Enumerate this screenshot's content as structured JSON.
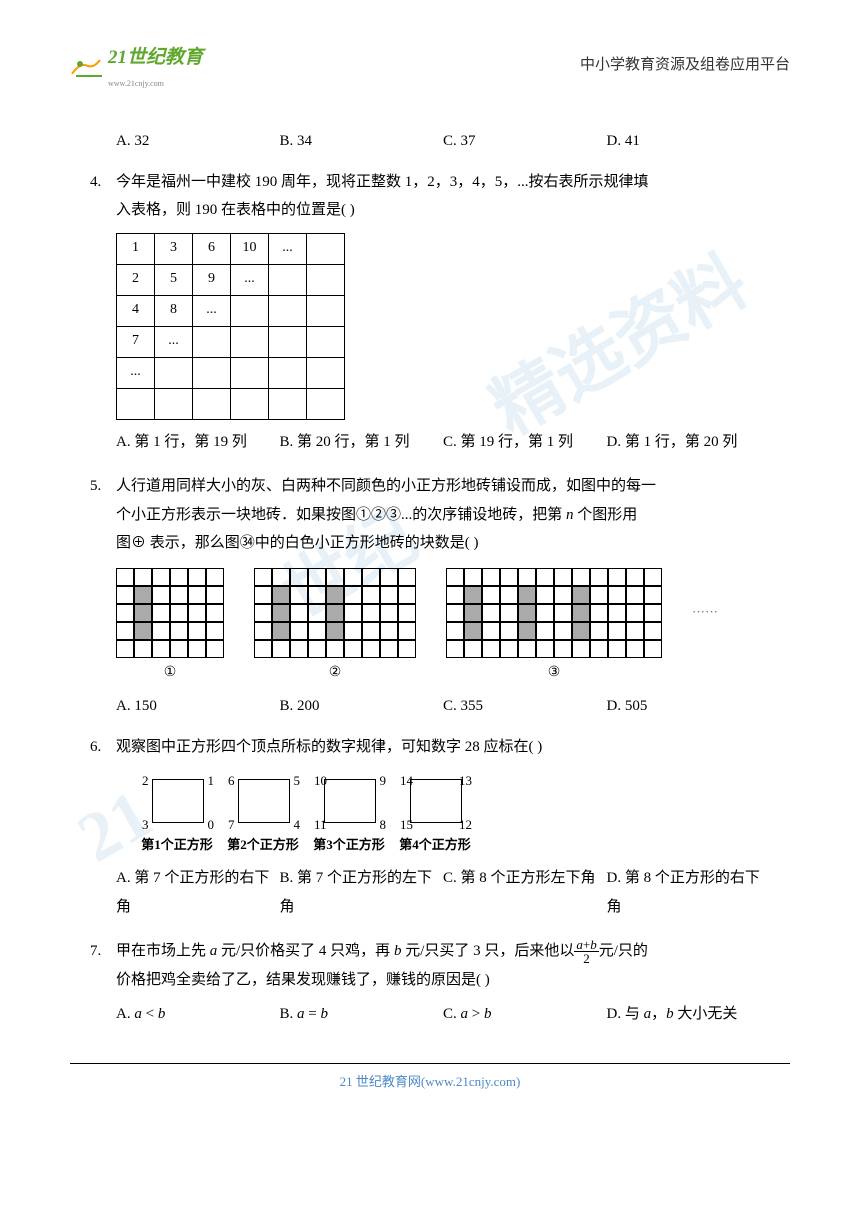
{
  "header": {
    "logo_text": "21世纪教育",
    "logo_sub": "www.21cnjy.com",
    "title": "中小学教育资源及组卷应用平台"
  },
  "prev": {
    "optA": "A. 32",
    "optB": "B. 34",
    "optC": "C. 37",
    "optD": "D. 41"
  },
  "q4": {
    "num": "4.",
    "text1": "今年是福州一中建校 190 周年，现将正整数 1，2，3，4，5，...按右表所示规律填",
    "text2": "入表格，则 190 在表格中的位置是(    )",
    "tdata": [
      [
        "1",
        "3",
        "6",
        "10",
        "...",
        ""
      ],
      [
        "2",
        "5",
        "9",
        "...",
        "",
        ""
      ],
      [
        "4",
        "8",
        "...",
        "",
        "",
        ""
      ],
      [
        "7",
        "...",
        "",
        "",
        "",
        ""
      ],
      [
        "...",
        "",
        "",
        "",
        "",
        ""
      ],
      [
        "",
        "",
        "",
        "",
        "",
        ""
      ]
    ],
    "optA": "A.  第 1 行，第 19 列",
    "optB": "B.  第 20 行，第 1 列",
    "optC": "C.  第 19 行，第 1 列",
    "optD": "D.  第 1 行，第 20 列"
  },
  "q5": {
    "num": "5.",
    "text1": "人行道用同样大小的灰、白两种不同颜色的小正方形地砖铺设而成，如图中的每一",
    "text2": "个小正方形表示一块地砖．如果按图①②③...的次序铺设地砖，把第 ",
    "text2b": " 个图形用",
    "text3": "图⊕ 表示，那么图㉞中的白色小正方形地砖的块数是(    )",
    "labels": [
      "①",
      "②",
      "③"
    ],
    "dots": "······",
    "optA": "A. 150",
    "optB": "B. 200",
    "optC": "C. 355",
    "optD": "D. 505"
  },
  "q6": {
    "num": "6.",
    "text": "观察图中正方形四个顶点所标的数字规律，可知数字 28 应标在(    )",
    "sq": [
      {
        "tl": "2",
        "tr": "1",
        "bl": "3",
        "br": "0",
        "cap": "第1个正方形"
      },
      {
        "tl": "6",
        "tr": "5",
        "bl": "7",
        "br": "4",
        "cap": "第2个正方形"
      },
      {
        "tl": "10",
        "tr": "9",
        "bl": "11",
        "br": "8",
        "cap": "第3个正方形"
      },
      {
        "tl": "14",
        "tr": "13",
        "bl": "15",
        "br": "12",
        "cap": "第4个正方形"
      }
    ],
    "optA": "A.  第 7 个正方形的右下角",
    "optB": "B.  第 7 个正方形的左下角",
    "optC": "C.  第 8 个正方形左下角",
    "optD": "D.  第 8 个正方形的右下角"
  },
  "q7": {
    "num": "7.",
    "t1": "甲在市场上先 ",
    "t2": " 元/只价格买了 4 只鸡，再 ",
    "t3": " 元/只买了 3 只，后来他以",
    "t4": "元/只的",
    "t5": "价格把鸡全卖给了乙，结果发现赚钱了，赚钱的原因是(    )",
    "optA": "A. ",
    "optB": "B. ",
    "optC": "C. ",
    "optD": "D.  与 ",
    "optDa": "，",
    "optDb": " 大小无关"
  },
  "footer": "21 世纪教育网(www.21cnjy.com)"
}
